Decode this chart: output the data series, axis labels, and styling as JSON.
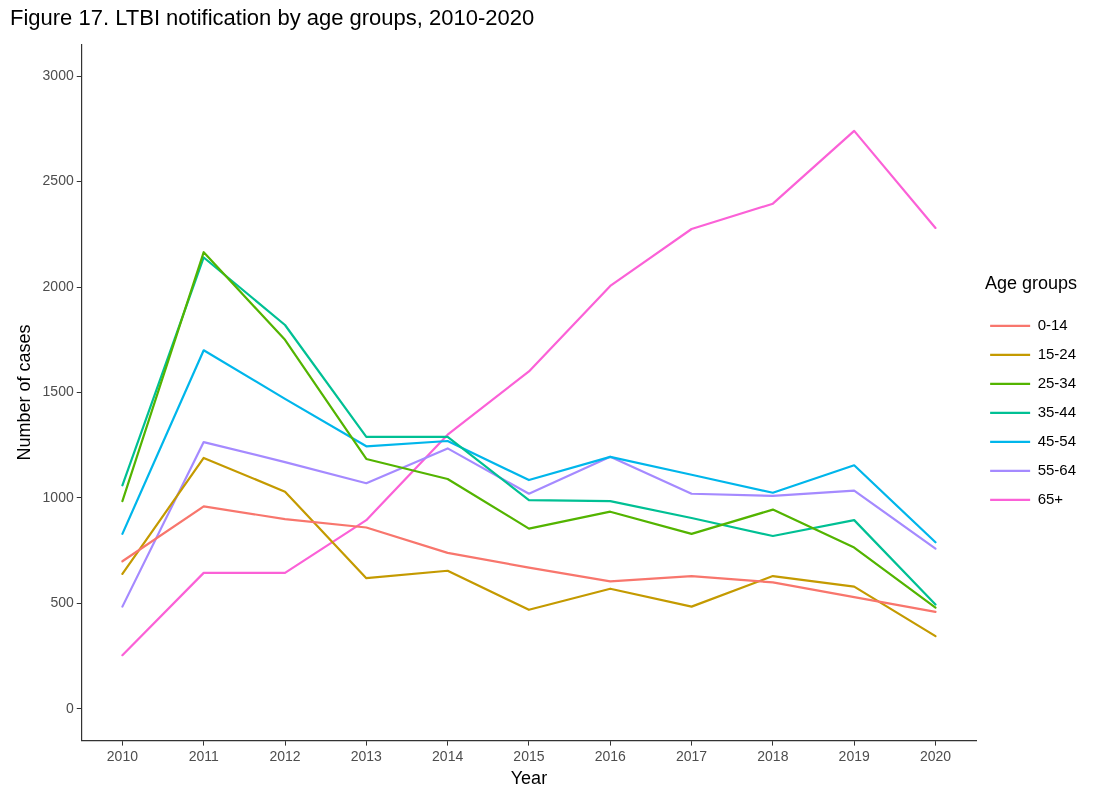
{
  "chart_data": {
    "type": "line",
    "title": "Figure 17. LTBI notification by age groups, 2010-2020",
    "xlabel": "Year",
    "ylabel": "Number of cases",
    "legend_title": "Age groups",
    "legend": "right",
    "grid": false,
    "marker": "none",
    "line_style": "solid",
    "x": [
      2010,
      2011,
      2012,
      2013,
      2014,
      2015,
      2016,
      2017,
      2018,
      2019,
      2020
    ],
    "xlim": [
      2009.5,
      2020.5
    ],
    "xticks": [
      2010,
      2011,
      2012,
      2013,
      2014,
      2015,
      2016,
      2017,
      2018,
      2019,
      2020
    ],
    "ylim": [
      -150,
      3150
    ],
    "yticks": [
      0,
      500,
      1000,
      1500,
      2000,
      2500,
      3000
    ],
    "series": [
      {
        "name": "0-14",
        "color": "#f8766d",
        "values": [
          700,
          960,
          900,
          860,
          740,
          670,
          605,
          630,
          600,
          530,
          460
        ]
      },
      {
        "name": "15-24",
        "color": "#c49a00",
        "values": [
          640,
          1190,
          1030,
          620,
          655,
          470,
          570,
          485,
          630,
          580,
          345
        ]
      },
      {
        "name": "25-34",
        "color": "#53b400",
        "values": [
          985,
          2165,
          1750,
          1185,
          1090,
          855,
          935,
          830,
          945,
          765,
          480
        ]
      },
      {
        "name": "35-44",
        "color": "#00c094",
        "values": [
          1060,
          2140,
          1820,
          1290,
          1290,
          990,
          985,
          905,
          820,
          895,
          495
        ]
      },
      {
        "name": "45-54",
        "color": "#00b6eb",
        "values": [
          830,
          1700,
          1470,
          1245,
          1270,
          1085,
          1195,
          1110,
          1025,
          1155,
          790
        ]
      },
      {
        "name": "55-64",
        "color": "#a58aff",
        "values": [
          485,
          1265,
          1170,
          1070,
          1235,
          1020,
          1195,
          1020,
          1010,
          1035,
          760
        ]
      },
      {
        "name": "65+",
        "color": "#fb61d7",
        "values": [
          255,
          645,
          645,
          895,
          1300,
          1600,
          2005,
          2275,
          2395,
          2740,
          2280
        ]
      }
    ]
  }
}
